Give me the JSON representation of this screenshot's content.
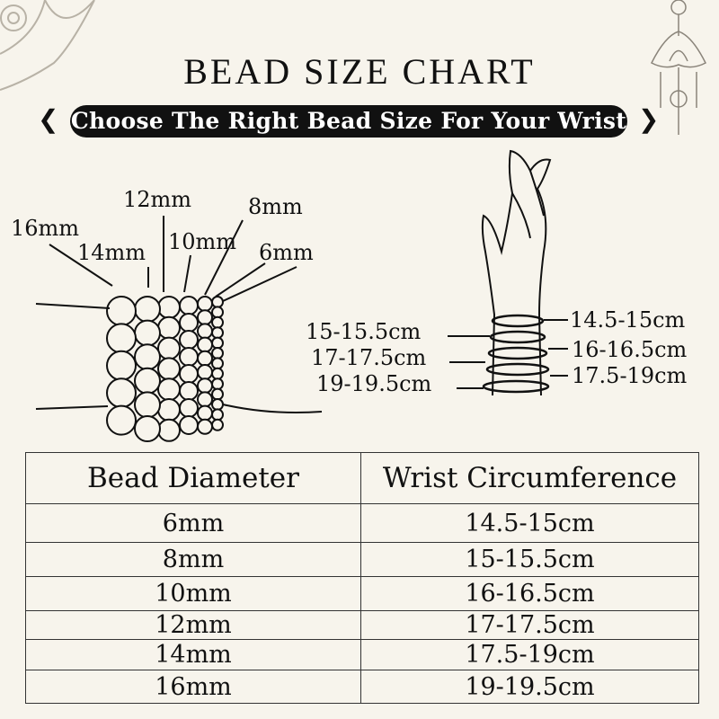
{
  "title": "BEAD SIZE CHART",
  "subtitle": "Choose The Right Bead Size For Your Wrist",
  "bead_labels": [
    "16mm",
    "14mm",
    "12mm",
    "10mm",
    "8mm",
    "6mm"
  ],
  "wrist_labels_left": [
    "15-15.5cm",
    "17-17.5cm",
    "19-19.5cm"
  ],
  "wrist_labels_right": [
    "14.5-15cm",
    "16-16.5cm",
    "17.5-19cm"
  ],
  "table": {
    "headers": [
      "Bead Diameter",
      "Wrist Circumference"
    ],
    "rows": [
      [
        "6mm",
        "14.5-15cm"
      ],
      [
        "8mm",
        "15-15.5cm"
      ],
      [
        "10mm",
        "16-16.5cm"
      ],
      [
        "12mm",
        "17-17.5cm"
      ],
      [
        "14mm",
        "17.5-19cm"
      ],
      [
        "16mm",
        "19-19.5cm"
      ]
    ]
  },
  "colors": {
    "background": "#f7f4ec",
    "ink": "#111111",
    "ornament": "#b8b2a6"
  }
}
